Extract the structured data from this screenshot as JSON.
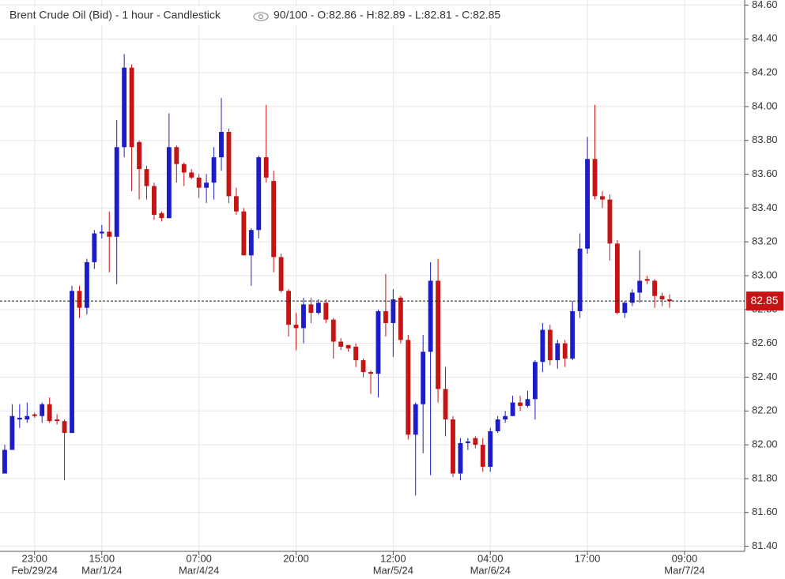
{
  "chart_data": {
    "type": "candlestick",
    "title": "Brent Crude Oil (Bid) - 1 hour - Candlestick",
    "summary": "90/100 - O:82.86 - H:82.89 - L:82.81 - C:82.85",
    "up_color": "#1c1cc8",
    "down_color": "#c41414",
    "open": [
      81.83,
      81.97,
      82.15,
      82.15,
      82.18,
      82.17,
      82.24,
      82.15,
      82.14,
      82.07,
      82.91,
      82.81,
      83.08,
      83.25,
      83.26,
      83.23,
      83.76,
      84.23,
      83.79,
      83.63,
      83.53,
      83.37,
      83.34,
      83.76,
      83.66,
      83.61,
      83.58,
      83.52,
      83.55,
      83.7,
      83.85,
      83.47,
      83.38,
      83.12,
      83.27,
      83.7,
      83.56,
      83.11,
      82.91,
      82.71,
      82.69,
      82.83,
      82.78,
      82.84,
      82.74,
      82.61,
      82.59,
      82.58,
      82.5,
      82.43,
      82.42,
      82.79,
      82.72,
      82.87,
      82.62,
      82.06,
      82.24,
      82.55,
      82.97,
      82.33,
      82.15,
      81.83,
      82.01,
      82.04,
      82.0,
      81.87,
      82.08,
      82.15,
      82.17,
      82.25,
      82.23,
      82.27,
      82.49,
      82.68,
      82.5,
      82.6,
      82.51,
      82.79,
      83.16,
      83.69,
      83.47,
      83.45,
      83.19,
      82.78,
      82.84,
      82.9,
      82.98,
      82.97,
      82.88,
      82.86
    ],
    "high": [
      82.0,
      82.24,
      82.24,
      82.25,
      82.19,
      82.25,
      82.28,
      82.18,
      82.15,
      82.94,
      82.94,
      83.1,
      83.27,
      83.3,
      83.38,
      83.92,
      84.31,
      84.25,
      83.8,
      83.65,
      83.55,
      83.38,
      83.96,
      83.77,
      83.67,
      83.63,
      83.6,
      83.6,
      83.76,
      84.05,
      83.87,
      83.52,
      83.4,
      83.28,
      83.71,
      84.01,
      83.62,
      83.13,
      82.92,
      82.78,
      82.87,
      82.87,
      82.86,
      82.86,
      82.75,
      82.63,
      82.59,
      82.6,
      82.51,
      82.44,
      82.8,
      83.01,
      82.92,
      82.88,
      82.65,
      82.25,
      82.65,
      83.08,
      83.1,
      82.46,
      82.17,
      82.04,
      82.04,
      82.05,
      82.04,
      82.1,
      82.17,
      82.2,
      82.29,
      82.29,
      82.32,
      82.5,
      82.72,
      82.71,
      82.62,
      82.62,
      82.85,
      83.25,
      83.82,
      84.01,
      83.5,
      83.48,
      83.21,
      82.85,
      82.92,
      83.15,
      83.0,
      82.98,
      82.9,
      82.89
    ],
    "low": [
      81.83,
      81.97,
      82.1,
      82.13,
      82.16,
      82.13,
      82.13,
      82.12,
      81.79,
      82.07,
      82.75,
      82.77,
      83.04,
      83.22,
      83.02,
      82.95,
      83.7,
      83.5,
      83.45,
      83.45,
      83.33,
      83.32,
      83.34,
      83.55,
      83.53,
      83.57,
      83.46,
      83.43,
      83.45,
      83.62,
      83.43,
      83.36,
      83.12,
      82.94,
      83.22,
      83.55,
      83.02,
      82.9,
      82.64,
      82.56,
      82.6,
      82.72,
      82.77,
      82.72,
      82.51,
      82.56,
      82.55,
      82.46,
      82.4,
      82.3,
      82.28,
      82.64,
      82.52,
      82.6,
      82.03,
      81.7,
      81.95,
      81.82,
      82.25,
      82.05,
      81.81,
      81.79,
      81.97,
      81.98,
      81.84,
      81.84,
      82.07,
      82.13,
      82.17,
      82.2,
      82.22,
      82.15,
      82.43,
      82.47,
      82.45,
      82.46,
      82.5,
      82.75,
      83.13,
      83.45,
      83.4,
      83.09,
      82.77,
      82.75,
      82.82,
      82.84,
      82.95,
      82.81,
      82.82,
      82.81
    ],
    "close": [
      81.97,
      82.17,
      82.16,
      82.17,
      82.17,
      82.24,
      82.14,
      82.14,
      82.07,
      82.91,
      82.81,
      83.08,
      83.25,
      83.26,
      83.23,
      83.76,
      84.23,
      83.76,
      83.63,
      83.53,
      83.36,
      83.34,
      83.76,
      83.66,
      83.61,
      83.58,
      83.52,
      83.55,
      83.7,
      83.85,
      83.47,
      83.38,
      83.12,
      83.27,
      83.7,
      83.58,
      83.11,
      82.91,
      82.71,
      82.69,
      82.83,
      82.78,
      82.84,
      82.74,
      82.61,
      82.58,
      82.57,
      82.5,
      82.43,
      82.42,
      82.79,
      82.72,
      82.86,
      82.62,
      82.06,
      82.24,
      82.55,
      82.97,
      82.33,
      82.15,
      81.83,
      82.01,
      82.02,
      82.0,
      81.87,
      82.08,
      82.15,
      82.17,
      82.25,
      82.23,
      82.27,
      82.49,
      82.68,
      82.5,
      82.6,
      82.51,
      82.79,
      83.16,
      83.69,
      83.47,
      83.45,
      83.19,
      82.78,
      82.84,
      82.9,
      82.97,
      82.97,
      82.88,
      82.86,
      82.85
    ],
    "last_price": 82.85,
    "xlim": [
      -0.63,
      99.05
    ],
    "xticks": [
      {
        "value": 4,
        "label": "23:00"
      },
      {
        "value": 13,
        "label": "15:00"
      },
      {
        "value": 26,
        "label": "07:00"
      },
      {
        "value": 39,
        "label": "20:00"
      },
      {
        "value": 52,
        "label": "12:00"
      },
      {
        "value": 65,
        "label": "04:00"
      },
      {
        "value": 78,
        "label": "17:00"
      },
      {
        "value": 91,
        "label": "09:00"
      }
    ],
    "xtick_dates": [
      {
        "value": 4,
        "label": "Feb/29/24"
      },
      {
        "value": 13,
        "label": "Mar/1/24"
      },
      {
        "value": 26,
        "label": "Mar/4/24"
      },
      {
        "value": 52,
        "label": "Mar/5/24"
      },
      {
        "value": 65,
        "label": "Mar/6/24"
      },
      {
        "value": 91,
        "label": "Mar/7/24"
      }
    ],
    "ylim": [
      81.37,
      84.63
    ],
    "yticks": [
      {
        "value": 81.4,
        "label": "81.40"
      },
      {
        "value": 81.6,
        "label": "81.60"
      },
      {
        "value": 81.8,
        "label": "81.80"
      },
      {
        "value": 82.0,
        "label": "82.00"
      },
      {
        "value": 82.2,
        "label": "82.20"
      },
      {
        "value": 82.4,
        "label": "82.40"
      },
      {
        "value": 82.6,
        "label": "82.60"
      },
      {
        "value": 82.8,
        "label": "82.80"
      },
      {
        "value": 83.0,
        "label": "83.00"
      },
      {
        "value": 83.2,
        "label": "83.20"
      },
      {
        "value": 83.4,
        "label": "83.40"
      },
      {
        "value": 83.6,
        "label": "83.60"
      },
      {
        "value": 83.8,
        "label": "83.80"
      },
      {
        "value": 84.0,
        "label": "84.00"
      },
      {
        "value": 84.2,
        "label": "84.20"
      },
      {
        "value": 84.4,
        "label": "84.40"
      },
      {
        "value": 84.6,
        "label": "84.60"
      }
    ],
    "grid": true
  }
}
